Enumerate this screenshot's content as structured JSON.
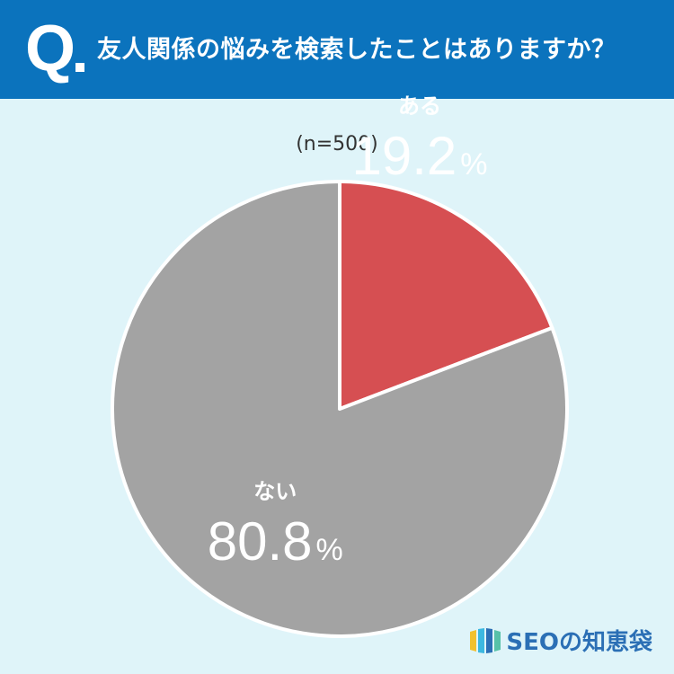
{
  "header": {
    "q_mark": "Q",
    "question": "友人関係の悩みを検索したことはありますか？"
  },
  "sample_label": "(n=500)",
  "colors": {
    "header_bg": "#0b73bd",
    "background": "#dff4f9",
    "slice_yes": "#d64f52",
    "slice_no": "#a3a3a3"
  },
  "chart_data": {
    "type": "pie",
    "unit": "%",
    "slices": [
      {
        "label": "ある",
        "value": 19.2,
        "display": "19.2",
        "color": "#d64f52"
      },
      {
        "label": "ない",
        "value": 80.8,
        "display": "80.8",
        "color": "#a3a3a3"
      }
    ]
  },
  "brand": {
    "name": "SEOの知恵袋",
    "logo_icon": "stripes-logo-icon"
  }
}
